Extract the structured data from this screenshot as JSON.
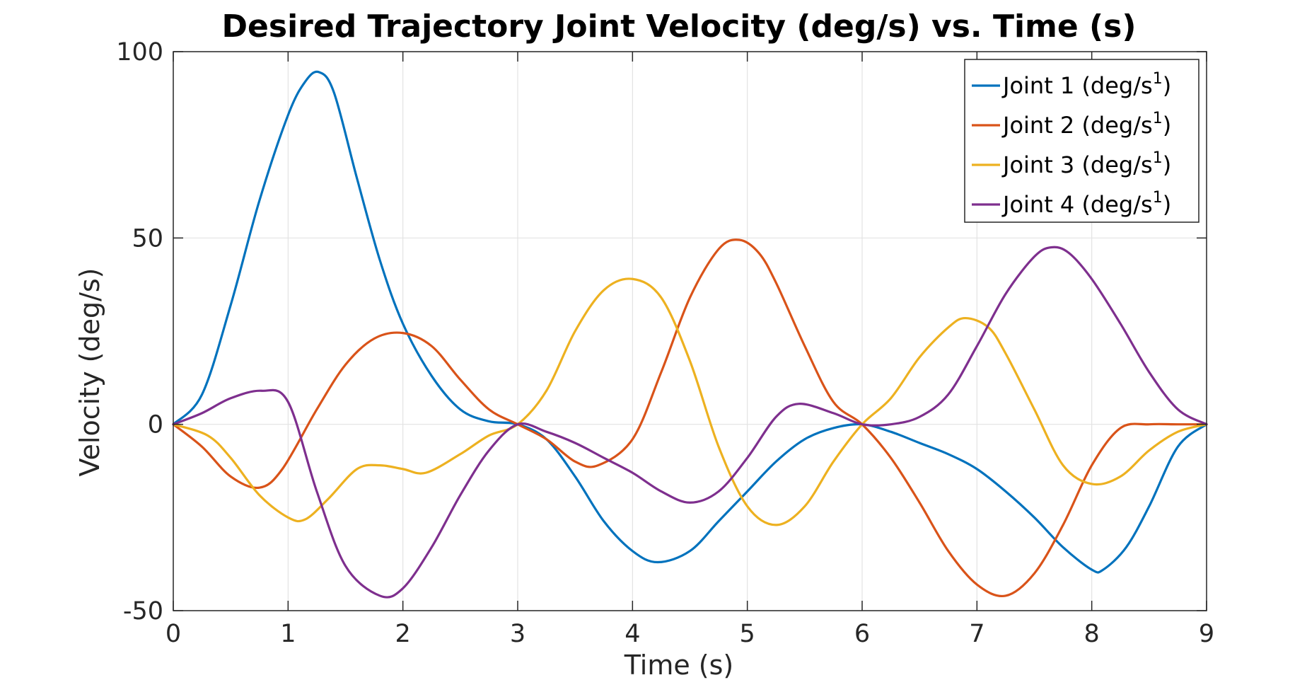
{
  "chart_data": {
    "type": "line",
    "title": "Desired Trajectory Joint Velocity (deg/s) vs. Time (s)",
    "xlabel": "Time (s)",
    "ylabel": "Velocity (deg/s)",
    "xlim": [
      0,
      9
    ],
    "ylim": [
      -50,
      100
    ],
    "x_ticks": [
      "0",
      "1",
      "2",
      "3",
      "4",
      "5",
      "6",
      "7",
      "8",
      "9"
    ],
    "y_ticks": [
      "-50",
      "0",
      "50",
      "100"
    ],
    "grid": true,
    "legend_position": "top-right",
    "legend_suffix": "1)",
    "series": [
      {
        "name": "Joint 1 (deg/s",
        "color": "#0072BD",
        "x": [
          0,
          0.25,
          0.5,
          0.75,
          1.0,
          1.15,
          1.27,
          1.4,
          1.6,
          1.8,
          2.0,
          2.25,
          2.5,
          2.75,
          3.0,
          3.25,
          3.5,
          3.75,
          4.0,
          4.22,
          4.5,
          4.75,
          5.0,
          5.25,
          5.5,
          5.75,
          6.0,
          6.25,
          6.5,
          6.75,
          7.0,
          7.25,
          7.5,
          7.75,
          8.0,
          8.1,
          8.3,
          8.5,
          8.75,
          9.0
        ],
        "y": [
          0,
          8,
          32,
          60,
          83,
          92,
          94.5,
          89,
          66,
          44,
          27,
          13,
          4,
          0.8,
          0,
          -4,
          -14,
          -26,
          -34,
          -37,
          -34,
          -26,
          -18,
          -10,
          -4,
          -1,
          0,
          -2,
          -5,
          -8,
          -12,
          -18,
          -25,
          -33,
          -39,
          -39,
          -33,
          -22,
          -6,
          0
        ]
      },
      {
        "name": "Joint 2 (deg/s",
        "color": "#D95319",
        "x": [
          0,
          0.25,
          0.5,
          0.75,
          0.95,
          1.25,
          1.5,
          1.75,
          2.0,
          2.25,
          2.5,
          2.75,
          3.0,
          3.25,
          3.5,
          3.7,
          4.0,
          4.25,
          4.5,
          4.75,
          4.93,
          5.1,
          5.25,
          5.5,
          5.75,
          6.0,
          6.25,
          6.5,
          6.75,
          7.0,
          7.25,
          7.5,
          7.75,
          8.0,
          8.25,
          8.5,
          8.75,
          9.0
        ],
        "y": [
          0,
          -6,
          -14,
          -17,
          -12,
          4,
          16,
          23,
          24.5,
          21,
          12,
          4,
          0,
          -4,
          -10,
          -11,
          -4,
          14,
          34,
          47,
          49.5,
          46,
          38,
          21,
          6,
          0,
          -9,
          -21,
          -34,
          -43,
          -46,
          -40,
          -27,
          -11,
          -1,
          0,
          0,
          0
        ]
      },
      {
        "name": "Joint 3 (deg/s",
        "color": "#EDB120",
        "x": [
          0,
          0.3,
          0.5,
          0.75,
          1.0,
          1.15,
          1.35,
          1.6,
          1.8,
          2.0,
          2.2,
          2.5,
          2.75,
          3.0,
          3.25,
          3.5,
          3.75,
          4.0,
          4.25,
          4.5,
          4.75,
          5.0,
          5.25,
          5.5,
          5.75,
          6.0,
          6.25,
          6.5,
          6.75,
          6.9,
          7.1,
          7.25,
          7.5,
          7.75,
          8.0,
          8.25,
          8.5,
          8.75,
          9.0
        ],
        "y": [
          0,
          -3,
          -9,
          -19,
          -25,
          -25.5,
          -20,
          -12,
          -11,
          -12,
          -13,
          -8,
          -3,
          0,
          9,
          25,
          36,
          39,
          34,
          17,
          -6,
          -22,
          -27,
          -22,
          -10,
          0,
          7,
          18,
          26,
          28.5,
          26,
          19,
          4,
          -11,
          -16,
          -14,
          -7,
          -2,
          0
        ]
      },
      {
        "name": "Joint 4 (deg/s",
        "color": "#7E2F8E",
        "x": [
          0,
          0.25,
          0.5,
          0.77,
          1.0,
          1.25,
          1.5,
          1.8,
          2.0,
          2.25,
          2.5,
          2.75,
          3.0,
          3.25,
          3.5,
          3.75,
          4.0,
          4.25,
          4.5,
          4.75,
          5.0,
          5.25,
          5.45,
          5.75,
          6.0,
          6.25,
          6.5,
          6.75,
          7.0,
          7.25,
          7.5,
          7.65,
          7.8,
          8.0,
          8.25,
          8.5,
          8.75,
          9.0
        ],
        "y": [
          0,
          3,
          7,
          9,
          6,
          -18,
          -38,
          -46,
          -44,
          -33,
          -19,
          -7,
          0,
          -2,
          -5,
          -9,
          -13,
          -18,
          -21,
          -18,
          -9,
          2,
          5.5,
          3,
          0,
          0,
          2,
          8,
          21,
          35,
          45,
          47.5,
          46,
          39,
          27,
          14,
          4,
          0
        ]
      }
    ]
  }
}
